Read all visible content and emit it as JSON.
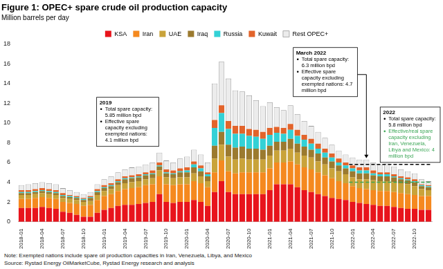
{
  "chart_data": {
    "type": "bar",
    "title": "Figure 1: OPEC+ spare crude oil production capacity",
    "subtitle": "Million barrels per day",
    "note": "Note: Exempted nations include spare oil production capacities in Iran, Venezuela, Libya, and Mexico",
    "source": "Source: Rystad Energy OilMarketCube, Rystad Energy research and analysis",
    "stacked": true,
    "grid": false,
    "legend": "top",
    "ylim": [
      0,
      18
    ],
    "yticks": [
      0,
      2,
      4,
      6,
      8,
      10,
      12,
      14,
      16,
      18
    ],
    "categories": [
      "2018-01",
      null,
      null,
      "2018-04",
      null,
      null,
      "2018-07",
      null,
      null,
      "2018-10",
      null,
      null,
      "2019-01",
      null,
      null,
      "2019-04",
      null,
      null,
      "2019-07",
      null,
      null,
      "2019-10",
      null,
      null,
      "2020-01",
      null,
      null,
      "2020-04",
      null,
      null,
      "2020-07",
      null,
      null,
      "2020-10",
      null,
      null,
      "2021-01",
      null,
      null,
      "2021-04",
      null,
      null,
      "2021-07",
      null,
      null,
      "2021-10",
      null,
      null,
      "2022-01",
      null,
      null,
      "2022-04",
      null,
      null,
      "2022-07",
      null,
      null,
      "2022-10",
      null,
      null
    ],
    "series": [
      {
        "name": "KSA",
        "color": "#e8141c",
        "values": [
          1.4,
          1.4,
          1.4,
          1.5,
          1.4,
          1.3,
          1.0,
          0.9,
          0.7,
          0.5,
          0.5,
          0.9,
          1.2,
          1.4,
          1.6,
          1.7,
          1.7,
          1.8,
          1.9,
          2.0,
          2.8,
          2.0,
          1.9,
          2.0,
          2.0,
          2.2,
          2.0,
          1.6,
          3.0,
          4.1,
          3.0,
          2.8,
          2.8,
          2.8,
          2.8,
          2.8,
          3.2,
          3.8,
          3.8,
          3.8,
          3.5,
          3.2,
          3.0,
          2.8,
          2.6,
          2.4,
          2.3,
          2.2,
          2.0,
          1.9,
          1.8,
          1.7,
          1.6,
          1.6,
          1.5,
          1.4,
          1.3,
          1.3,
          1.2,
          1.2
        ]
      },
      {
        "name": "Iran",
        "color": "#f5891f",
        "values": [
          0.9,
          0.9,
          1.0,
          1.0,
          1.0,
          1.0,
          1.0,
          1.0,
          1.1,
          1.1,
          1.2,
          1.3,
          1.4,
          1.4,
          1.5,
          1.6,
          1.7,
          1.7,
          1.8,
          1.8,
          1.8,
          1.8,
          1.8,
          1.8,
          1.8,
          1.9,
          1.9,
          1.9,
          2.0,
          2.1,
          2.1,
          2.1,
          2.2,
          2.2,
          2.2,
          2.2,
          2.2,
          2.2,
          2.2,
          2.3,
          2.3,
          2.3,
          2.3,
          2.2,
          2.1,
          2.0,
          1.8,
          1.7,
          1.6,
          1.5,
          1.5,
          1.5,
          1.5,
          1.5,
          1.5,
          1.5,
          1.5,
          1.4,
          1.4,
          1.4
        ]
      },
      {
        "name": "UAE",
        "color": "#c9a33a",
        "values": [
          0.4,
          0.4,
          0.4,
          0.4,
          0.4,
          0.4,
          0.4,
          0.4,
          0.4,
          0.4,
          0.4,
          0.5,
          0.5,
          0.5,
          0.6,
          0.6,
          0.6,
          0.6,
          0.6,
          0.6,
          0.6,
          0.7,
          0.7,
          0.7,
          0.7,
          0.8,
          0.7,
          0.6,
          1.4,
          1.6,
          1.5,
          1.4,
          1.4,
          1.3,
          1.3,
          1.3,
          1.3,
          1.2,
          1.2,
          1.3,
          1.2,
          1.2,
          1.2,
          1.1,
          1.1,
          1.0,
          1.0,
          0.9,
          0.9,
          0.9,
          1.0,
          1.0,
          1.0,
          1.0,
          1.0,
          1.0,
          1.0,
          0.9,
          0.7,
          0.6
        ]
      },
      {
        "name": "Iraq",
        "color": "#9b7a2f",
        "values": [
          0.2,
          0.2,
          0.2,
          0.2,
          0.2,
          0.2,
          0.2,
          0.2,
          0.2,
          0.2,
          0.3,
          0.3,
          0.3,
          0.3,
          0.3,
          0.4,
          0.4,
          0.4,
          0.4,
          0.4,
          0.4,
          0.4,
          0.4,
          0.5,
          0.5,
          0.6,
          0.5,
          0.5,
          1.3,
          1.3,
          1.2,
          1.2,
          1.2,
          1.1,
          1.1,
          1.0,
          1.0,
          0.9,
          0.9,
          1.0,
          0.9,
          0.9,
          0.8,
          0.8,
          0.7,
          0.7,
          0.6,
          0.6,
          0.6,
          0.6,
          0.6,
          0.5,
          0.5,
          0.5,
          0.5,
          0.4,
          0.4,
          0.4,
          0.3,
          0.3
        ]
      },
      {
        "name": "Russia",
        "color": "#33d1d6",
        "values": [
          0.1,
          0.1,
          0.1,
          0.1,
          0.1,
          0.1,
          0.1,
          0.1,
          0.1,
          0.1,
          0.1,
          0.1,
          0.1,
          0.1,
          0.1,
          0.1,
          0.1,
          0.1,
          0.1,
          0.1,
          0.1,
          0.1,
          0.1,
          0.1,
          0.2,
          0.3,
          0.3,
          0.2,
          1.8,
          1.9,
          1.6,
          1.4,
          1.3,
          1.3,
          1.2,
          1.1,
          1.1,
          0.9,
          0.8,
          0.9,
          0.8,
          0.7,
          0.6,
          0.5,
          0.5,
          0.4,
          0.3,
          0.3,
          0.3,
          0.3,
          0.3,
          0.2,
          0.2,
          0.2,
          0.1,
          0.1,
          0.1,
          0.1,
          0.1,
          0.1
        ]
      },
      {
        "name": "Kuwait",
        "color": "#e2642b",
        "values": [
          0.2,
          0.2,
          0.2,
          0.2,
          0.2,
          0.2,
          0.2,
          0.1,
          0.1,
          0.1,
          0.1,
          0.2,
          0.2,
          0.2,
          0.2,
          0.2,
          0.2,
          0.2,
          0.2,
          0.3,
          0.3,
          0.3,
          0.3,
          0.3,
          0.3,
          0.3,
          0.3,
          0.2,
          0.8,
          0.8,
          0.8,
          0.8,
          0.8,
          0.7,
          0.7,
          0.7,
          0.7,
          0.6,
          0.6,
          0.6,
          0.6,
          0.5,
          0.5,
          0.5,
          0.4,
          0.4,
          0.4,
          0.3,
          0.3,
          0.3,
          0.3,
          0.3,
          0.2,
          0.2,
          0.2,
          0.2,
          0.2,
          0.2,
          0.1,
          0.1
        ]
      },
      {
        "name": "Rest OPEC+",
        "color": "#ececec",
        "values": [
          0.5,
          0.6,
          0.6,
          0.6,
          0.6,
          0.6,
          0.5,
          0.5,
          0.4,
          0.4,
          0.4,
          0.5,
          0.6,
          0.7,
          0.7,
          0.7,
          0.8,
          0.8,
          0.8,
          0.8,
          1.0,
          0.9,
          0.8,
          1.0,
          1.1,
          1.2,
          1.1,
          1.0,
          3.7,
          4.4,
          4.3,
          3.6,
          3.5,
          3.4,
          3.0,
          2.6,
          2.6,
          2.0,
          1.8,
          1.9,
          1.6,
          1.4,
          1.3,
          1.2,
          1.1,
          0.9,
          0.8,
          0.8,
          0.8,
          0.8,
          0.8,
          0.8,
          0.8,
          0.9,
          0.8,
          0.7,
          0.6,
          0.6,
          0.5,
          0.4
        ]
      }
    ],
    "annotations": [
      {
        "title": "2019",
        "lines": [
          {
            "text": "Total spare capacity: 5.85 million bpd"
          },
          {
            "text": "Effective spare capacity excluding exempted nations: 4.1 million bpd"
          }
        ]
      },
      {
        "title": "March 2022",
        "lines": [
          {
            "text": "Total spare capacity: 6.3 million bpd"
          },
          {
            "text": "Effective spare capacity excluding exempted nations: 4.7 million bpd"
          }
        ]
      },
      {
        "title": "2022",
        "lines": [
          {
            "text": "Total spare capacity: 5.8 million bpd"
          },
          {
            "text": "Effective/real spare capacity excluding Iran, Venezuela, Libya and Mexico: 4 million bpd",
            "color": "#3aa655"
          }
        ]
      }
    ],
    "reference_lines": [
      {
        "value": 5.8,
        "start": "2022-01",
        "color": "#000000",
        "line_style": "dashed"
      },
      {
        "value": 4,
        "start": "2022-01",
        "color": "#3aa655",
        "line_style": "dashed"
      }
    ]
  }
}
